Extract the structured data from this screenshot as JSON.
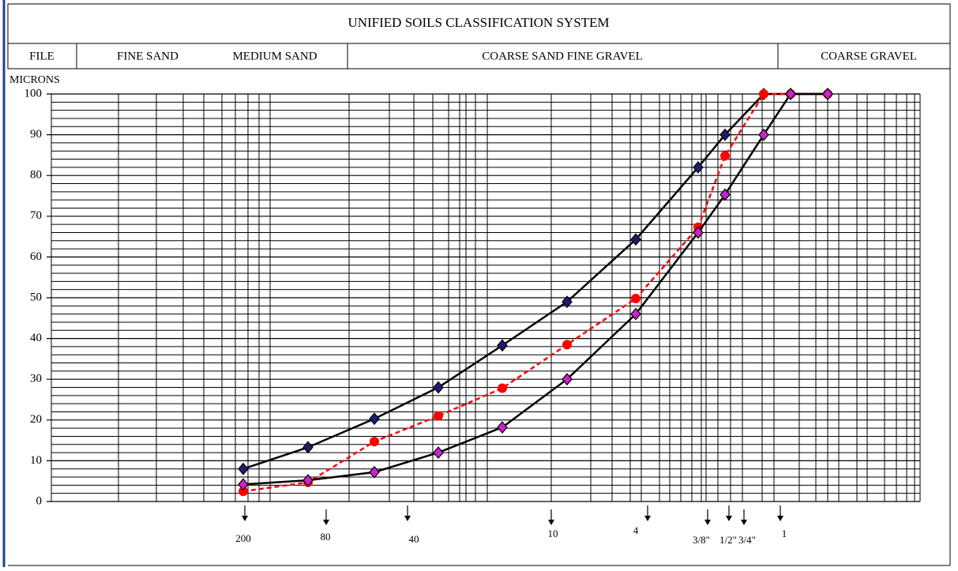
{
  "chart_data": {
    "type": "line",
    "title": "UNIFIED SOILS CLASSIFICATION SYSTEM",
    "bands": [
      "FILE",
      "FINE SAND",
      "MEDIUM SAND",
      "COARSE SAND FINE GRAVEL",
      "COARSE GRAVEL"
    ],
    "y_label": "MICRONS",
    "sieves": [
      "200",
      "80",
      "40",
      "10",
      "4",
      "3/8\"",
      "1/2\"",
      "3/4\"",
      "1"
    ],
    "categories": [
      null,
      null,
      null,
      null,
      null,
      null,
      null,
      null,
      null,
      null,
      null,
      null
    ],
    "ylim": [
      0,
      100
    ],
    "yticks": [
      0,
      10,
      20,
      30,
      40,
      50,
      60,
      70,
      80,
      90,
      100
    ],
    "grid": true,
    "series": [
      {
        "color": "#1c1c70",
        "line_color": "#000000",
        "dashed": false,
        "marker": "diamond",
        "values": [
          8,
          13.3,
          20.3,
          28,
          38.3,
          49,
          64.3,
          82,
          90,
          100,
          100,
          100
        ]
      },
      {
        "color": "#ff0000",
        "line_color": "#ff0000",
        "dashed": true,
        "marker": "circle",
        "values": [
          2.5,
          4.7,
          14.7,
          21,
          27.8,
          38.5,
          49.8,
          67.3,
          84.8,
          100,
          100,
          100
        ]
      },
      {
        "color": "#cc22cc",
        "line_color": "#000000",
        "dashed": false,
        "marker": "diamond",
        "values": [
          4.2,
          5.2,
          7.2,
          12,
          18.2,
          30,
          46,
          66,
          75.3,
          90,
          100,
          100
        ]
      }
    ]
  }
}
